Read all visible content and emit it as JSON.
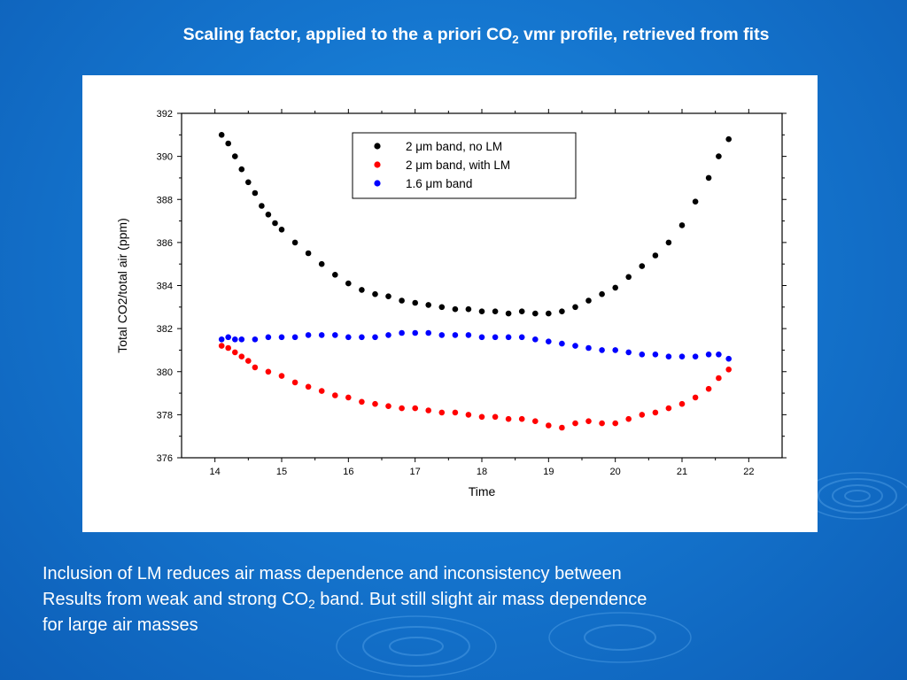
{
  "slide": {
    "title_main": "Scaling factor, applied to the a priori CO",
    "title_sub": "2",
    "title_rest": " vmr profile, retrieved from fits",
    "caption_line1": "Inclusion of LM reduces air mass dependence and inconsistency between",
    "caption_line2_pre": "Results from weak and strong CO",
    "caption_line2_sub": "2",
    "caption_line2_post": " band. But still slight air mass dependence",
    "caption_line3": "for large air masses"
  },
  "colors": {
    "slide_background": "#1576cf",
    "series_black": "#000000",
    "series_red": "#ff0000",
    "series_blue": "#0000ff"
  },
  "chart_data": {
    "type": "scatter",
    "xlabel": "Time",
    "ylabel": "Total CO2/total air (ppm)",
    "xlim": [
      13.5,
      22.5
    ],
    "ylim": [
      376,
      392
    ],
    "xticks": [
      14,
      15,
      16,
      17,
      18,
      19,
      20,
      21,
      22
    ],
    "xtick_labels": [
      "14",
      "15",
      "16",
      "17",
      "18",
      "19",
      "20",
      "21",
      "22"
    ],
    "yticks": [
      376,
      378,
      380,
      382,
      384,
      386,
      388,
      390,
      392
    ],
    "ytick_labels": [
      "376",
      "378",
      "380",
      "382",
      "384",
      "386",
      "388",
      "390",
      "392"
    ],
    "grid": false,
    "legend_position": "top-center",
    "series": [
      {
        "name": "2 μm band, no LM",
        "color": "#000000",
        "x": [
          14.1,
          14.2,
          14.3,
          14.4,
          14.5,
          14.6,
          14.7,
          14.8,
          14.9,
          15.0,
          15.2,
          15.4,
          15.6,
          15.8,
          16.0,
          16.2,
          16.4,
          16.6,
          16.8,
          17.0,
          17.2,
          17.4,
          17.6,
          17.8,
          18.0,
          18.2,
          18.4,
          18.6,
          18.8,
          19.0,
          19.2,
          19.4,
          19.6,
          19.8,
          20.0,
          20.2,
          20.4,
          20.6,
          20.8,
          21.0,
          21.2,
          21.4,
          21.55,
          21.7
        ],
        "y": [
          391.0,
          390.6,
          390.0,
          389.4,
          388.8,
          388.3,
          387.7,
          387.3,
          386.9,
          386.6,
          386.0,
          385.5,
          385.0,
          384.5,
          384.1,
          383.8,
          383.6,
          383.5,
          383.3,
          383.2,
          383.1,
          383.0,
          382.9,
          382.9,
          382.8,
          382.8,
          382.7,
          382.8,
          382.7,
          382.7,
          382.8,
          383.0,
          383.3,
          383.6,
          383.9,
          384.4,
          384.9,
          385.4,
          386.0,
          386.8,
          387.9,
          389.0,
          390.0,
          390.8
        ]
      },
      {
        "name": "2 μm band, with LM",
        "color": "#ff0000",
        "x": [
          14.1,
          14.2,
          14.3,
          14.4,
          14.5,
          14.6,
          14.8,
          15.0,
          15.2,
          15.4,
          15.6,
          15.8,
          16.0,
          16.2,
          16.4,
          16.6,
          16.8,
          17.0,
          17.2,
          17.4,
          17.6,
          17.8,
          18.0,
          18.2,
          18.4,
          18.6,
          18.8,
          19.0,
          19.2,
          19.4,
          19.6,
          19.8,
          20.0,
          20.2,
          20.4,
          20.6,
          20.8,
          21.0,
          21.2,
          21.4,
          21.55,
          21.7
        ],
        "y": [
          381.2,
          381.1,
          380.9,
          380.7,
          380.5,
          380.2,
          380.0,
          379.8,
          379.5,
          379.3,
          379.1,
          378.9,
          378.8,
          378.6,
          378.5,
          378.4,
          378.3,
          378.3,
          378.2,
          378.1,
          378.1,
          378.0,
          377.9,
          377.9,
          377.8,
          377.8,
          377.7,
          377.5,
          377.4,
          377.6,
          377.7,
          377.6,
          377.6,
          377.8,
          378.0,
          378.1,
          378.3,
          378.5,
          378.8,
          379.2,
          379.7,
          380.1
        ]
      },
      {
        "name": "1.6 μm band",
        "color": "#0000ff",
        "x": [
          14.1,
          14.2,
          14.3,
          14.4,
          14.6,
          14.8,
          15.0,
          15.2,
          15.4,
          15.6,
          15.8,
          16.0,
          16.2,
          16.4,
          16.6,
          16.8,
          17.0,
          17.2,
          17.4,
          17.6,
          17.8,
          18.0,
          18.2,
          18.4,
          18.6,
          18.8,
          19.0,
          19.2,
          19.4,
          19.6,
          19.8,
          20.0,
          20.2,
          20.4,
          20.6,
          20.8,
          21.0,
          21.2,
          21.4,
          21.55,
          21.7
        ],
        "y": [
          381.5,
          381.6,
          381.5,
          381.5,
          381.5,
          381.6,
          381.6,
          381.6,
          381.7,
          381.7,
          381.7,
          381.6,
          381.6,
          381.6,
          381.7,
          381.8,
          381.8,
          381.8,
          381.7,
          381.7,
          381.7,
          381.6,
          381.6,
          381.6,
          381.6,
          381.5,
          381.4,
          381.3,
          381.2,
          381.1,
          381.0,
          381.0,
          380.9,
          380.8,
          380.8,
          380.7,
          380.7,
          380.7,
          380.8,
          380.8,
          380.6
        ]
      }
    ]
  }
}
